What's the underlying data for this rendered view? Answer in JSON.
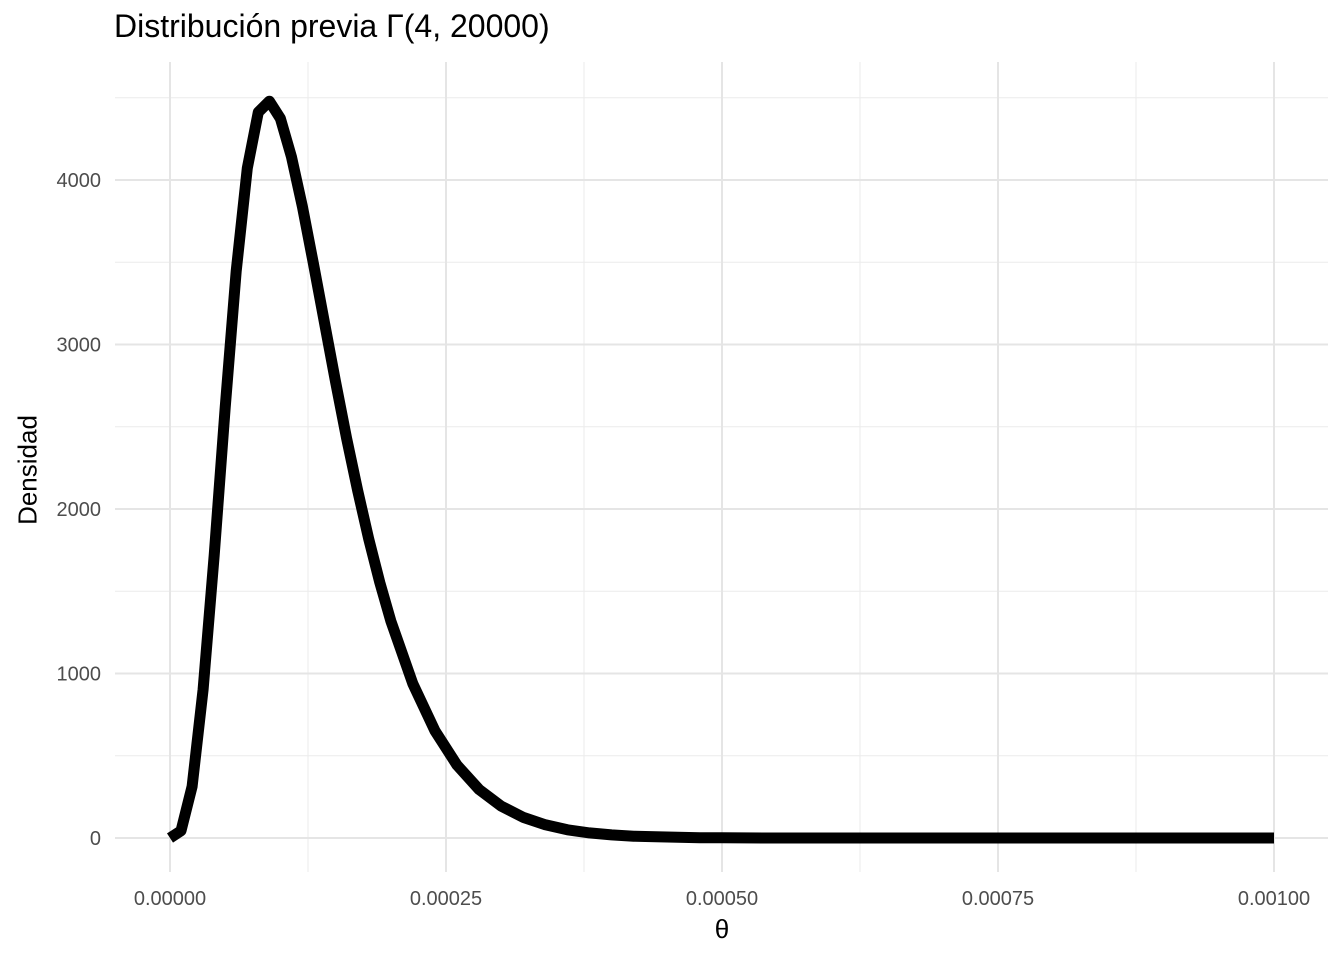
{
  "chart_data": {
    "type": "line",
    "title": "Distribución previa Γ(4, 20000)",
    "xlabel": "θ",
    "ylabel": "Densidad",
    "xlim": [
      0,
      0.001
    ],
    "ylim": [
      0,
      4500
    ],
    "x_ticks": [
      0,
      0.00025,
      0.0005,
      0.00075,
      0.001
    ],
    "x_tick_labels": [
      "0.00000",
      "0.00025",
      "0.00050",
      "0.00075",
      "0.00100"
    ],
    "y_ticks": [
      0,
      1000,
      2000,
      3000,
      4000
    ],
    "y_tick_labels": [
      "0",
      "1000",
      "2000",
      "3000",
      "4000"
    ],
    "grid": true,
    "series": [
      {
        "color": "#000000",
        "x": [
          0,
          1e-05,
          2e-05,
          3e-05,
          4e-05,
          5e-05,
          6e-05,
          7e-05,
          8e-05,
          9e-05,
          0.0001,
          0.00011,
          0.00012,
          0.00013,
          0.00014,
          0.00015,
          0.00016,
          0.00017,
          0.00018,
          0.00019,
          0.0002,
          0.00022,
          0.00024,
          0.00026,
          0.00028,
          0.0003,
          0.00032,
          0.00034,
          0.00036,
          0.00038,
          0.0004,
          0.00042,
          0.00044,
          0.00046,
          0.00048,
          0.0005,
          0.00055,
          0.0006,
          0.00065,
          0.0007,
          0.00075,
          0.0008,
          0.00085,
          0.0009,
          0.00095,
          0.001
        ],
        "y": [
          0,
          44,
          313,
          903,
          1719,
          2617,
          3446,
          4072,
          4412,
          4479,
          4374,
          4142,
          3835,
          3489,
          3128,
          2772,
          2430,
          2111,
          1818,
          1553,
          1320,
          937,
          651,
          443,
          295,
          194,
          125,
          80,
          50,
          31,
          19,
          11,
          7,
          4,
          2,
          1,
          0,
          0,
          0,
          0,
          0,
          0,
          0,
          0,
          0,
          0
        ]
      }
    ]
  }
}
